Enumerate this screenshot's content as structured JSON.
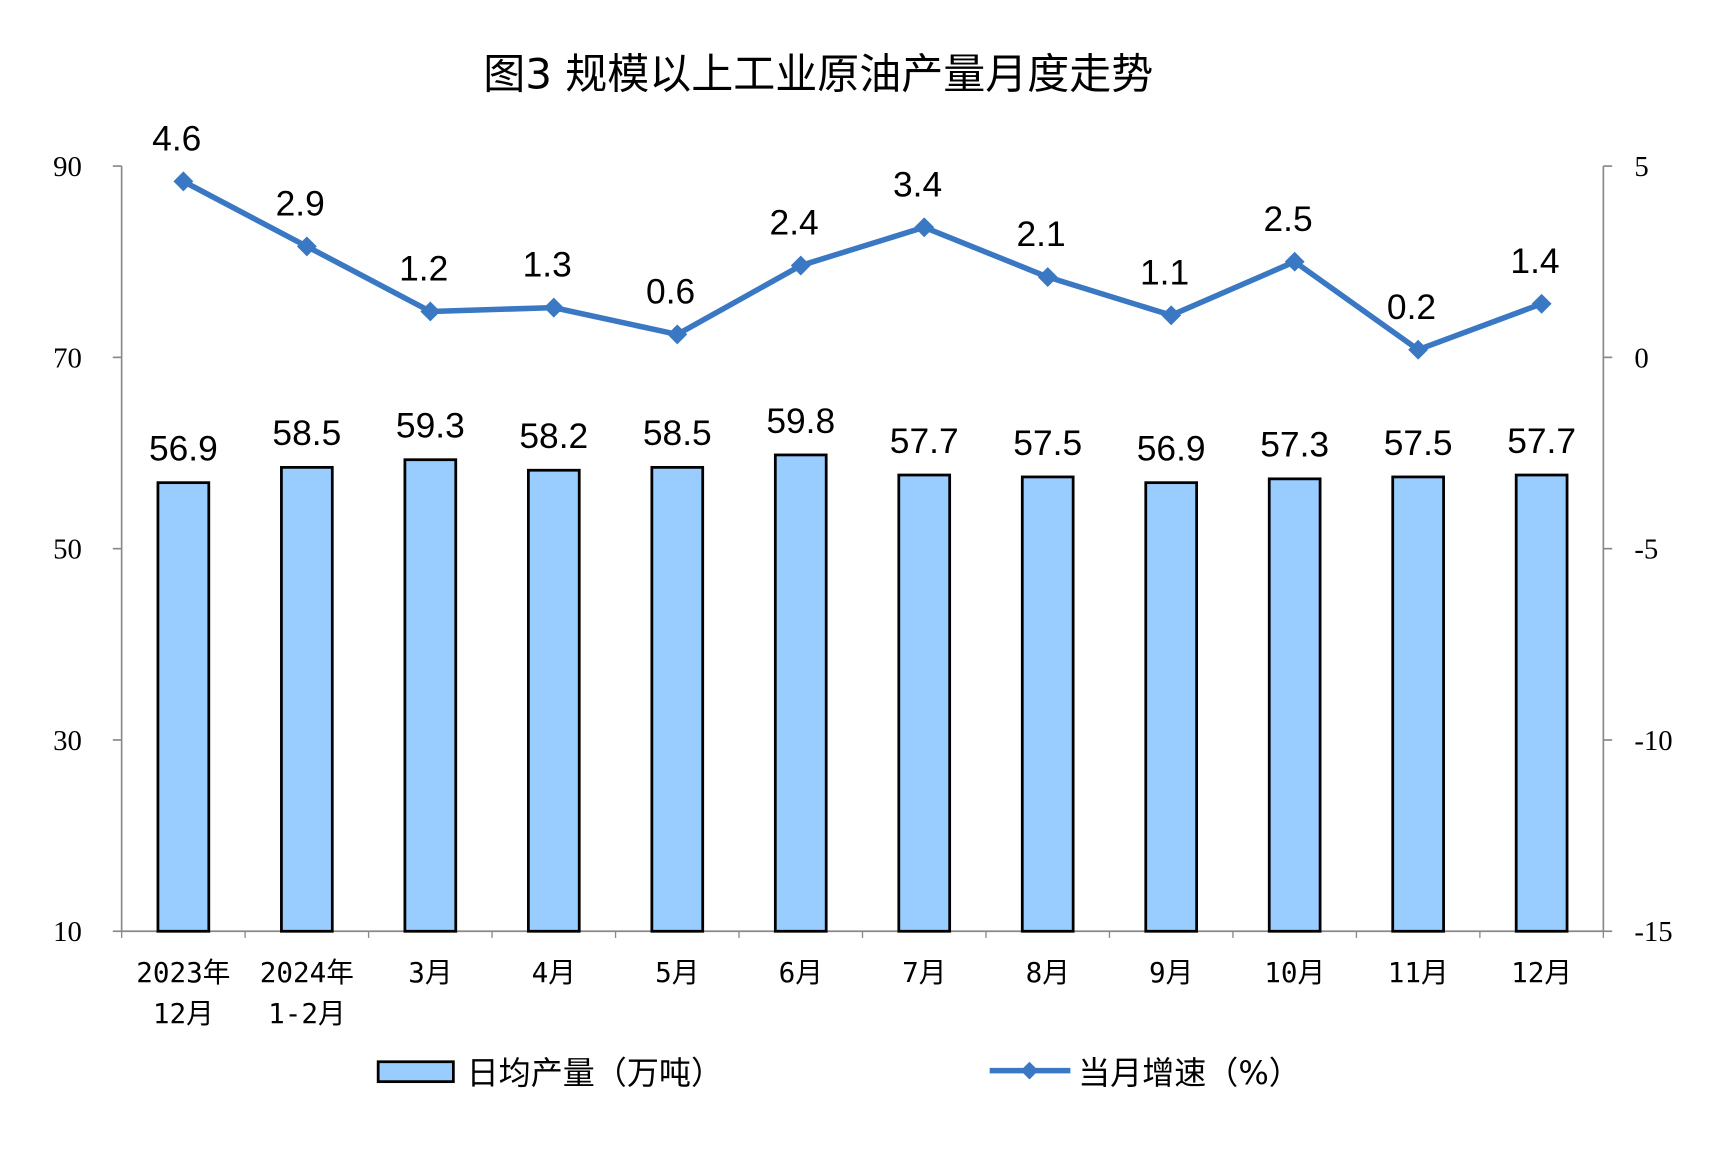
{
  "chart_data": {
    "type": "bar+line",
    "title": "图3  规模以上工业原油产量月度走势",
    "categories": [
      [
        "2023年",
        "12月"
      ],
      [
        "2024年",
        "1-2月"
      ],
      [
        "3月"
      ],
      [
        "4月"
      ],
      [
        "5月"
      ],
      [
        "6月"
      ],
      [
        "7月"
      ],
      [
        "8月"
      ],
      [
        "9月"
      ],
      [
        "10月"
      ],
      [
        "11月"
      ],
      [
        "12月"
      ]
    ],
    "series": [
      {
        "name": "日均产量（万吨）",
        "type": "bar",
        "axis": "left",
        "color": "#99ccff",
        "values": [
          56.9,
          58.5,
          59.3,
          58.2,
          58.5,
          59.8,
          57.7,
          57.5,
          56.9,
          57.3,
          57.5,
          57.7
        ]
      },
      {
        "name": "当月增速（%）",
        "type": "line",
        "axis": "right",
        "color": "#3a78c3",
        "marker": "diamond",
        "values": [
          4.6,
          2.9,
          1.2,
          1.3,
          0.6,
          2.4,
          3.4,
          2.1,
          1.1,
          2.5,
          0.2,
          1.4
        ]
      }
    ],
    "left_axis": {
      "ylim": [
        10,
        90
      ],
      "ticks": [
        "10",
        "30",
        "50",
        "70",
        "90"
      ]
    },
    "right_axis": {
      "ylim": [
        -15,
        5
      ],
      "ticks": [
        "-15",
        "-10",
        "-5",
        "0",
        "5"
      ]
    },
    "grid": false,
    "legend": "bottom"
  }
}
